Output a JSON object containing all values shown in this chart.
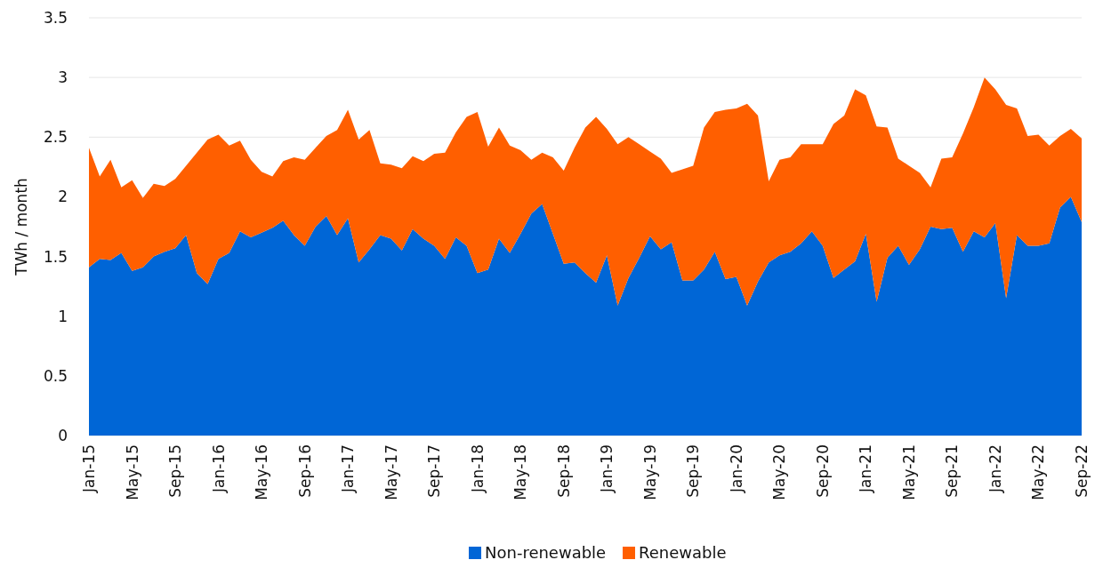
{
  "chart_data": {
    "type": "area",
    "stacked": true,
    "ylabel": "TWh / month",
    "categories": [
      "Jan-15",
      null,
      null,
      null,
      "May-15",
      null,
      null,
      null,
      "Sep-15",
      null,
      null,
      null,
      "Jan-16",
      null,
      null,
      null,
      "May-16",
      null,
      null,
      null,
      "Sep-16",
      null,
      null,
      null,
      "Jan-17",
      null,
      null,
      null,
      "May-17",
      null,
      null,
      null,
      "Sep-17",
      null,
      null,
      null,
      "Jan-18",
      null,
      null,
      null,
      "May-18",
      null,
      null,
      null,
      "Sep-18",
      null,
      null,
      null,
      "Jan-19",
      null,
      null,
      null,
      "May-19",
      null,
      null,
      null,
      "Sep-19",
      null,
      null,
      null,
      "Jan-20",
      null,
      null,
      null,
      "May-20",
      null,
      null,
      null,
      "Sep-20",
      null,
      null,
      null,
      "Jan-21",
      null,
      null,
      null,
      "May-21",
      null,
      null,
      null,
      "Sep-21",
      null,
      null,
      null,
      "Jan-22",
      null,
      null,
      null,
      "May-22",
      null,
      null,
      null,
      "Sep-22"
    ],
    "series": [
      {
        "name": "Non-renewable",
        "color": "#0066d6",
        "values": [
          1.41,
          1.48,
          1.47,
          1.53,
          1.38,
          1.41,
          1.5,
          1.54,
          1.57,
          1.68,
          1.36,
          1.27,
          1.48,
          1.53,
          1.71,
          1.66,
          1.7,
          1.74,
          1.8,
          1.68,
          1.59,
          1.75,
          1.84,
          1.68,
          1.82,
          1.45,
          1.56,
          1.68,
          1.65,
          1.55,
          1.73,
          1.65,
          1.59,
          1.48,
          1.66,
          1.59,
          1.36,
          1.39,
          1.65,
          1.53,
          1.69,
          1.86,
          1.94,
          1.69,
          1.44,
          1.45,
          1.36,
          1.28,
          1.51,
          1.09,
          1.32,
          1.49,
          1.67,
          1.56,
          1.62,
          1.3,
          1.3,
          1.39,
          1.54,
          1.31,
          1.33,
          1.09,
          1.29,
          1.45,
          1.51,
          1.54,
          1.61,
          1.71,
          1.59,
          1.32,
          1.39,
          1.46,
          1.69,
          1.12,
          1.49,
          1.59,
          1.43,
          1.56,
          1.75,
          1.73,
          1.74,
          1.54,
          1.71,
          1.66,
          1.78,
          1.15,
          1.68,
          1.59,
          1.59,
          1.61,
          1.91,
          2.0,
          1.79
        ]
      },
      {
        "name": "Renewable",
        "color": "#ff5f00",
        "values": [
          1.0,
          0.69,
          0.84,
          0.55,
          0.76,
          0.58,
          0.61,
          0.55,
          0.58,
          0.58,
          1.01,
          1.21,
          1.04,
          0.9,
          0.76,
          0.65,
          0.51,
          0.43,
          0.5,
          0.65,
          0.72,
          0.66,
          0.67,
          0.88,
          0.91,
          1.03,
          1.0,
          0.6,
          0.62,
          0.69,
          0.61,
          0.65,
          0.77,
          0.89,
          0.88,
          1.08,
          1.35,
          1.03,
          0.93,
          0.9,
          0.7,
          0.45,
          0.43,
          0.64,
          0.78,
          0.96,
          1.22,
          1.39,
          1.06,
          1.35,
          1.18,
          0.95,
          0.71,
          0.76,
          0.58,
          0.93,
          0.96,
          1.19,
          1.17,
          1.42,
          1.41,
          1.69,
          1.39,
          0.68,
          0.8,
          0.79,
          0.83,
          0.73,
          0.85,
          1.29,
          1.29,
          1.44,
          1.16,
          1.47,
          1.09,
          0.73,
          0.83,
          0.64,
          0.33,
          0.59,
          0.59,
          0.99,
          1.04,
          1.34,
          1.12,
          1.62,
          1.06,
          0.92,
          0.93,
          0.82,
          0.6,
          0.57,
          0.7
        ]
      }
    ],
    "ylim": [
      0,
      3.5
    ],
    "yticks": [
      0,
      0.5,
      1,
      1.5,
      2,
      2.5,
      3,
      3.5
    ],
    "grid": "y",
    "legend": "bottom"
  }
}
